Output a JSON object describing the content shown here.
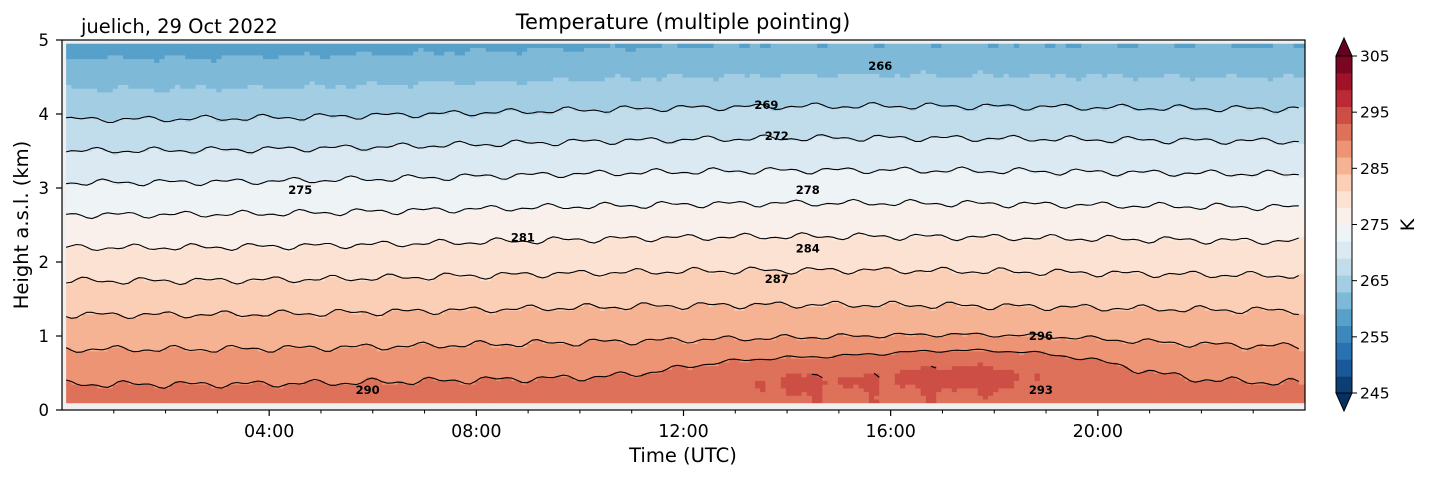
{
  "chart_data": {
    "type": "heatmap",
    "title": "Temperature (multiple pointing)",
    "annotation": "juelich, 29 Oct 2022",
    "xlabel": "Time (UTC)",
    "ylabel": "Height a.s.l. (km)",
    "xlim": [
      0,
      24
    ],
    "ylim": [
      0,
      5
    ],
    "x_ticks": [
      {
        "value": 4,
        "label": "04:00"
      },
      {
        "value": 8,
        "label": "08:00"
      },
      {
        "value": 12,
        "label": "12:00"
      },
      {
        "value": 16,
        "label": "16:00"
      },
      {
        "value": 20,
        "label": "20:00"
      }
    ],
    "y_ticks": [
      {
        "value": 0,
        "label": "0"
      },
      {
        "value": 1,
        "label": "1"
      },
      {
        "value": 2,
        "label": "2"
      },
      {
        "value": 3,
        "label": "3"
      },
      {
        "value": 4,
        "label": "4"
      },
      {
        "value": 5,
        "label": "5"
      }
    ],
    "colorbar": {
      "label": "K",
      "vmin": 245,
      "vmax": 305,
      "level_step": 3,
      "colormap": "RdBu_r",
      "extend": "both",
      "ticks": [
        {
          "value": 245,
          "label": "245"
        },
        {
          "value": 255,
          "label": "255"
        },
        {
          "value": 265,
          "label": "265"
        },
        {
          "value": 275,
          "label": "275"
        },
        {
          "value": 285,
          "label": "285"
        },
        {
          "value": 295,
          "label": "295"
        },
        {
          "value": 305,
          "label": "305"
        }
      ]
    },
    "contour_levels": [
      266,
      269,
      272,
      275,
      278,
      281,
      284,
      287,
      290,
      293,
      296
    ],
    "contour_labels": [
      {
        "text": "266",
        "x": 15.8,
        "y": 4.65
      },
      {
        "text": "269",
        "x": 13.6,
        "y": 4.12
      },
      {
        "text": "272",
        "x": 13.8,
        "y": 3.7
      },
      {
        "text": "275",
        "x": 4.6,
        "y": 2.97
      },
      {
        "text": "278",
        "x": 14.4,
        "y": 2.97
      },
      {
        "text": "281",
        "x": 8.9,
        "y": 2.33
      },
      {
        "text": "284",
        "x": 14.4,
        "y": 2.18
      },
      {
        "text": "287",
        "x": 13.8,
        "y": 1.77
      },
      {
        "text": "290",
        "x": 5.9,
        "y": 0.27
      },
      {
        "text": "293",
        "x": 18.9,
        "y": 0.27
      },
      {
        "text": "296",
        "x": 18.9,
        "y": 1.0
      }
    ],
    "grid": false
  }
}
